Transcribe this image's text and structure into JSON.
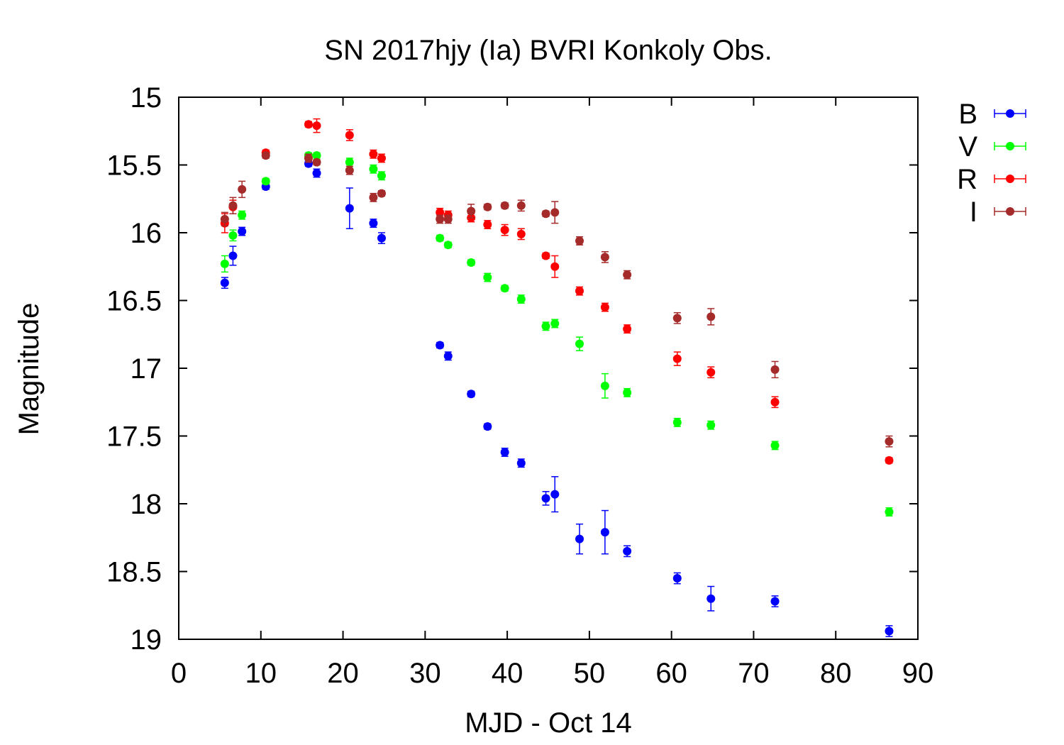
{
  "chart_data": {
    "type": "scatter",
    "title": "SN 2017hjy (Ia) BVRI Konkoly Obs.",
    "xlabel": "MJD - Oct 14",
    "ylabel": "Magnitude",
    "xlim": [
      0,
      90
    ],
    "ylim": [
      15,
      19
    ],
    "y_inverted": true,
    "xticks": [
      0,
      10,
      20,
      30,
      40,
      50,
      60,
      70,
      80,
      90
    ],
    "yticks": [
      15,
      15.5,
      16,
      16.5,
      17,
      17.5,
      18,
      18.5,
      19
    ],
    "xtick_labels": [
      "0",
      "10",
      "20",
      "30",
      "40",
      "50",
      "60",
      "70",
      "80",
      "90"
    ],
    "ytick_labels": [
      "15",
      "15.5",
      "16",
      "16.5",
      "17",
      "17.5",
      "18",
      "18.5",
      "19"
    ],
    "grid": false,
    "legend_position": "outside-right",
    "error_bars": true,
    "series": [
      {
        "name": "B",
        "color": "#0000ff",
        "points": [
          {
            "x": 5.6,
            "y": 16.37,
            "err": 0.04
          },
          {
            "x": 6.6,
            "y": 16.17,
            "err": 0.07
          },
          {
            "x": 7.7,
            "y": 15.99,
            "err": 0.03
          },
          {
            "x": 10.6,
            "y": 15.66,
            "err": 0.02
          },
          {
            "x": 15.8,
            "y": 15.49,
            "err": 0.02
          },
          {
            "x": 16.8,
            "y": 15.56,
            "err": 0.03
          },
          {
            "x": 20.8,
            "y": 15.82,
            "err": 0.15
          },
          {
            "x": 23.7,
            "y": 15.93,
            "err": 0.03
          },
          {
            "x": 24.7,
            "y": 16.04,
            "err": 0.04
          },
          {
            "x": 31.8,
            "y": 16.83,
            "err": 0.02
          },
          {
            "x": 32.8,
            "y": 16.91,
            "err": 0.03
          },
          {
            "x": 35.6,
            "y": 17.19,
            "err": 0.02
          },
          {
            "x": 37.6,
            "y": 17.43,
            "err": 0.02
          },
          {
            "x": 39.7,
            "y": 17.62,
            "err": 0.03
          },
          {
            "x": 41.7,
            "y": 17.7,
            "err": 0.03
          },
          {
            "x": 44.7,
            "y": 17.96,
            "err": 0.05
          },
          {
            "x": 45.8,
            "y": 17.93,
            "err": 0.13
          },
          {
            "x": 48.8,
            "y": 18.26,
            "err": 0.11
          },
          {
            "x": 51.9,
            "y": 18.21,
            "err": 0.16
          },
          {
            "x": 54.6,
            "y": 18.35,
            "err": 0.04
          },
          {
            "x": 60.7,
            "y": 18.55,
            "err": 0.04
          },
          {
            "x": 64.8,
            "y": 18.7,
            "err": 0.09
          },
          {
            "x": 72.6,
            "y": 18.72,
            "err": 0.04
          },
          {
            "x": 86.5,
            "y": 18.94,
            "err": 0.04
          }
        ]
      },
      {
        "name": "V",
        "color": "#00ff00",
        "points": [
          {
            "x": 5.6,
            "y": 16.23,
            "err": 0.06
          },
          {
            "x": 6.6,
            "y": 16.02,
            "err": 0.04
          },
          {
            "x": 7.7,
            "y": 15.87,
            "err": 0.03
          },
          {
            "x": 10.6,
            "y": 15.62,
            "err": 0.02
          },
          {
            "x": 15.8,
            "y": 15.43,
            "err": 0.02
          },
          {
            "x": 16.8,
            "y": 15.43,
            "err": 0.02
          },
          {
            "x": 20.8,
            "y": 15.48,
            "err": 0.03
          },
          {
            "x": 23.7,
            "y": 15.53,
            "err": 0.03
          },
          {
            "x": 24.7,
            "y": 15.58,
            "err": 0.03
          },
          {
            "x": 31.8,
            "y": 16.04,
            "err": 0.02
          },
          {
            "x": 32.8,
            "y": 16.09,
            "err": 0.02
          },
          {
            "x": 35.6,
            "y": 16.22,
            "err": 0.02
          },
          {
            "x": 37.6,
            "y": 16.33,
            "err": 0.03
          },
          {
            "x": 39.7,
            "y": 16.41,
            "err": 0.02
          },
          {
            "x": 41.7,
            "y": 16.49,
            "err": 0.03
          },
          {
            "x": 44.7,
            "y": 16.69,
            "err": 0.03
          },
          {
            "x": 45.8,
            "y": 16.67,
            "err": 0.03
          },
          {
            "x": 48.8,
            "y": 16.82,
            "err": 0.05
          },
          {
            "x": 51.9,
            "y": 17.13,
            "err": 0.09
          },
          {
            "x": 54.6,
            "y": 17.18,
            "err": 0.03
          },
          {
            "x": 60.7,
            "y": 17.4,
            "err": 0.03
          },
          {
            "x": 64.8,
            "y": 17.42,
            "err": 0.03
          },
          {
            "x": 72.6,
            "y": 17.57,
            "err": 0.03
          },
          {
            "x": 86.5,
            "y": 18.06,
            "err": 0.03
          }
        ]
      },
      {
        "name": "R",
        "color": "#ff0000",
        "points": [
          {
            "x": 5.6,
            "y": 15.93,
            "err": 0.07
          },
          {
            "x": 6.6,
            "y": 15.81,
            "err": 0.05
          },
          {
            "x": 10.6,
            "y": 15.41,
            "err": 0.02
          },
          {
            "x": 15.8,
            "y": 15.2,
            "err": 0.02
          },
          {
            "x": 16.8,
            "y": 15.21,
            "err": 0.05
          },
          {
            "x": 20.8,
            "y": 15.28,
            "err": 0.04
          },
          {
            "x": 23.7,
            "y": 15.42,
            "err": 0.03
          },
          {
            "x": 24.7,
            "y": 15.45,
            "err": 0.03
          },
          {
            "x": 31.8,
            "y": 15.85,
            "err": 0.03
          },
          {
            "x": 32.8,
            "y": 15.87,
            "err": 0.03
          },
          {
            "x": 35.6,
            "y": 15.89,
            "err": 0.03
          },
          {
            "x": 37.6,
            "y": 15.94,
            "err": 0.03
          },
          {
            "x": 39.7,
            "y": 15.98,
            "err": 0.04
          },
          {
            "x": 41.7,
            "y": 16.01,
            "err": 0.04
          },
          {
            "x": 44.7,
            "y": 16.17,
            "err": 0.02
          },
          {
            "x": 45.8,
            "y": 16.25,
            "err": 0.08
          },
          {
            "x": 48.8,
            "y": 16.43,
            "err": 0.03
          },
          {
            "x": 51.9,
            "y": 16.55,
            "err": 0.03
          },
          {
            "x": 54.6,
            "y": 16.71,
            "err": 0.03
          },
          {
            "x": 60.7,
            "y": 16.93,
            "err": 0.05
          },
          {
            "x": 64.8,
            "y": 17.03,
            "err": 0.04
          },
          {
            "x": 72.6,
            "y": 17.25,
            "err": 0.04
          },
          {
            "x": 86.5,
            "y": 17.68,
            "err": 0.02
          }
        ]
      },
      {
        "name": "I",
        "color": "#a52a2a",
        "points": [
          {
            "x": 5.6,
            "y": 15.9,
            "err": 0.05
          },
          {
            "x": 6.6,
            "y": 15.8,
            "err": 0.06
          },
          {
            "x": 7.7,
            "y": 15.68,
            "err": 0.06
          },
          {
            "x": 10.6,
            "y": 15.43,
            "err": 0.02
          },
          {
            "x": 15.8,
            "y": 15.45,
            "err": 0.03
          },
          {
            "x": 16.8,
            "y": 15.48,
            "err": 0.02
          },
          {
            "x": 20.8,
            "y": 15.54,
            "err": 0.03
          },
          {
            "x": 23.7,
            "y": 15.74,
            "err": 0.03
          },
          {
            "x": 24.7,
            "y": 15.71,
            "err": 0.02
          },
          {
            "x": 31.8,
            "y": 15.9,
            "err": 0.03
          },
          {
            "x": 32.8,
            "y": 15.9,
            "err": 0.03
          },
          {
            "x": 35.6,
            "y": 15.84,
            "err": 0.05
          },
          {
            "x": 37.6,
            "y": 15.81,
            "err": 0.02
          },
          {
            "x": 39.7,
            "y": 15.8,
            "err": 0.02
          },
          {
            "x": 41.7,
            "y": 15.8,
            "err": 0.04
          },
          {
            "x": 44.7,
            "y": 15.86,
            "err": 0.02
          },
          {
            "x": 45.8,
            "y": 15.85,
            "err": 0.08
          },
          {
            "x": 48.8,
            "y": 16.06,
            "err": 0.03
          },
          {
            "x": 51.9,
            "y": 16.18,
            "err": 0.04
          },
          {
            "x": 54.6,
            "y": 16.31,
            "err": 0.03
          },
          {
            "x": 60.7,
            "y": 16.63,
            "err": 0.04
          },
          {
            "x": 64.8,
            "y": 16.62,
            "err": 0.06
          },
          {
            "x": 72.6,
            "y": 17.01,
            "err": 0.06
          },
          {
            "x": 86.5,
            "y": 17.54,
            "err": 0.04
          }
        ]
      }
    ]
  }
}
